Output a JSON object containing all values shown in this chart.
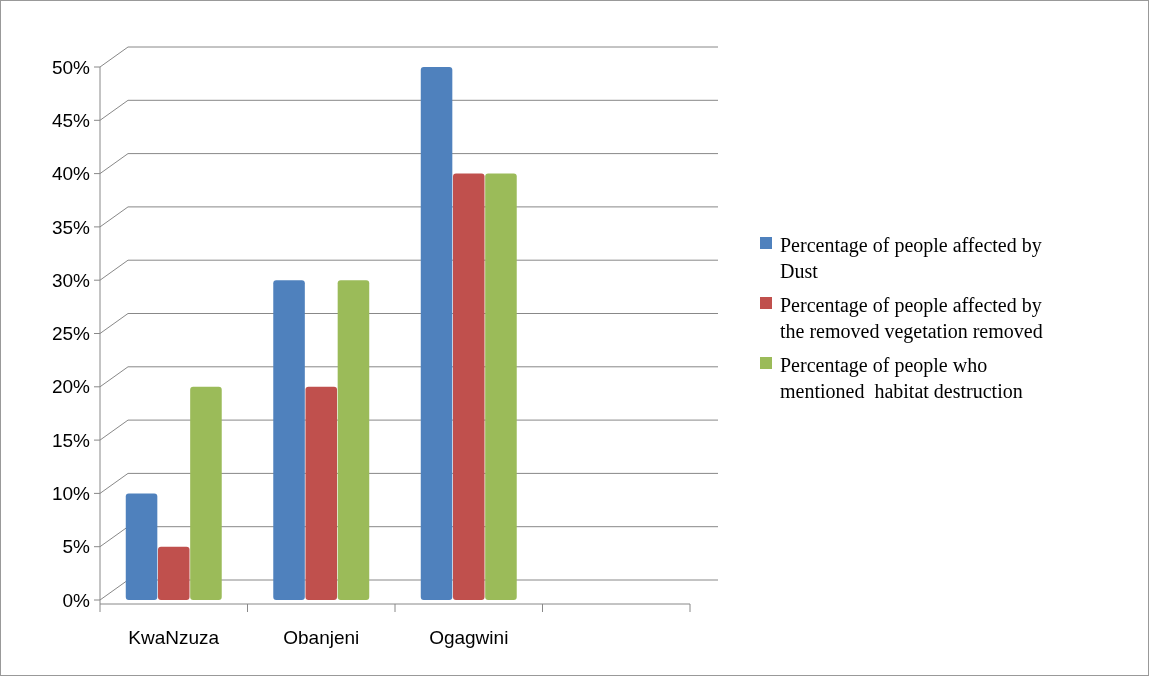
{
  "chart_data": {
    "type": "bar",
    "categories": [
      "KwaNzuza",
      "Obanjeni",
      "Ogagwini",
      null
    ],
    "series": [
      {
        "name": "Percentage of people affected by Dust",
        "color": "#4f81bd",
        "values": [
          10,
          30,
          50,
          null
        ]
      },
      {
        "name": "Percentage of people affected by the removed vegetation removed",
        "color": "#c0504d",
        "values": [
          5,
          20,
          40,
          null
        ]
      },
      {
        "name": "Percentage of people who mentioned  habitat destruction",
        "color": "#9bbb59",
        "values": [
          20,
          30,
          40,
          null
        ]
      }
    ],
    "ylim": [
      0,
      50
    ],
    "yticks": [
      {
        "value": 0,
        "label": "0%"
      },
      {
        "value": 5,
        "label": "5%"
      },
      {
        "value": 10,
        "label": "10%"
      },
      {
        "value": 15,
        "label": "15%"
      },
      {
        "value": 20,
        "label": "20%"
      },
      {
        "value": 25,
        "label": "25%"
      },
      {
        "value": 30,
        "label": "30%"
      },
      {
        "value": 35,
        "label": "35%"
      },
      {
        "value": 40,
        "label": "40%"
      },
      {
        "value": 45,
        "label": "45%"
      },
      {
        "value": 50,
        "label": "50%"
      }
    ],
    "grid": "y",
    "legend": "right"
  }
}
